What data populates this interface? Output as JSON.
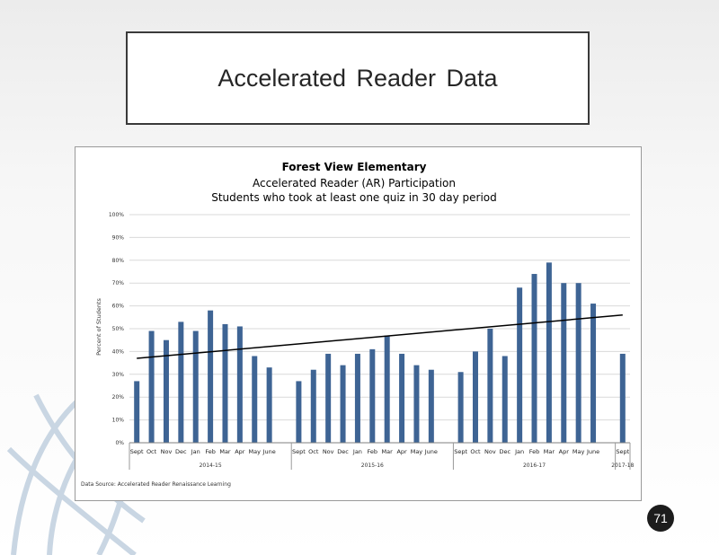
{
  "slide": {
    "title": "Accelerated Reader Data",
    "page_number": "71"
  },
  "chart_data": {
    "type": "bar",
    "title": "Forest View Elementary",
    "subtitle": "Accelerated Reader (AR) Participation",
    "subtitle2": "Students who took at least one quiz in 30 day period",
    "xlabel": "",
    "ylabel": "Percent of Students",
    "ylim": [
      0,
      100
    ],
    "yticks": [
      "0%",
      "10%",
      "20%",
      "30%",
      "40%",
      "50%",
      "60%",
      "70%",
      "80%",
      "90%",
      "100%"
    ],
    "grid": true,
    "legend": "none",
    "color": "#3e6494",
    "trendline_color": "#000000",
    "categories": [
      "Sept",
      "Oct",
      "Nov",
      "Dec",
      "Jan",
      "Feb",
      "Mar",
      "Apr",
      "May",
      "June",
      "",
      "Sept",
      "Oct",
      "Nov",
      "Dec",
      "Jan",
      "Feb",
      "Mar",
      "Apr",
      "May",
      "June",
      "",
      "Sept",
      "Oct",
      "Nov",
      "Dec",
      "Jan",
      "Feb",
      "Mar",
      "Apr",
      "May",
      "June",
      "",
      "Sept"
    ],
    "values": [
      27,
      49,
      45,
      53,
      49,
      58,
      52,
      51,
      38,
      33,
      null,
      27,
      32,
      39,
      34,
      39,
      41,
      47,
      39,
      34,
      32,
      null,
      31,
      40,
      50,
      38,
      68,
      74,
      79,
      70,
      70,
      61,
      null,
      39
    ],
    "groups": [
      {
        "label": "2014-15",
        "start": 0,
        "end": 10
      },
      {
        "label": "2015-16",
        "start": 11,
        "end": 21
      },
      {
        "label": "2016-17",
        "start": 22,
        "end": 32
      },
      {
        "label": "2017-18",
        "start": 33,
        "end": 33
      }
    ],
    "trendline": {
      "start": 37,
      "end": 56
    },
    "source_note": "Data Source: Accelerated Reader Renaissance Learning"
  }
}
